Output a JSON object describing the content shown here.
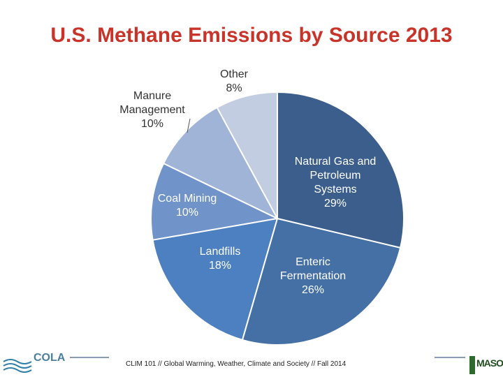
{
  "chart_data": {
    "type": "pie",
    "title": "U.S. Methane Emissions by Source 2013",
    "categories": [
      "Natural Gas and Petroleum Systems",
      "Enteric Fermentation",
      "Landfills",
      "Coal Mining",
      "Manure Management",
      "Other"
    ],
    "values": [
      29,
      26,
      18,
      10,
      10,
      8
    ],
    "value_labels": [
      "29%",
      "26%",
      "18%",
      "10%",
      "10%",
      "8%"
    ],
    "colors": [
      "#3b5e8c",
      "#4570a6",
      "#4d80c0",
      "#7094c9",
      "#a0b4d7",
      "#c3cde2"
    ]
  },
  "footer": {
    "text": "CLIM 101 // Global Warming, Weather, Climate and Society // Fall 2014",
    "left_logo": "COLA",
    "right_logo": "MASON"
  }
}
